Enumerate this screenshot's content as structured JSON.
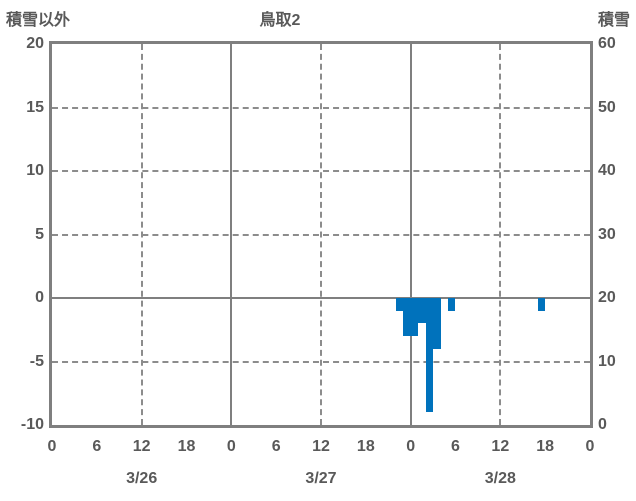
{
  "header": {
    "left_axis_title": "積雪以外",
    "chart_title": "鳥取2",
    "right_axis_title": "積雪"
  },
  "chart_data": {
    "type": "bar",
    "title": "鳥取2",
    "left_axis": {
      "title": "積雪以外",
      "min": -10,
      "max": 20,
      "ticks": [
        20,
        15,
        10,
        5,
        0,
        -5,
        -10
      ]
    },
    "right_axis": {
      "title": "積雪",
      "min": 0,
      "max": 60,
      "ticks": [
        60,
        50,
        40,
        30,
        20,
        10,
        0
      ]
    },
    "x_axis": {
      "total_hours": 72,
      "tick_step_hours": 6,
      "hour_tick_labels": [
        "0",
        "6",
        "12",
        "18",
        "0",
        "6",
        "12",
        "18",
        "0",
        "6",
        "12",
        "18",
        "0"
      ],
      "day_labels": [
        "3/26",
        "3/27",
        "3/28"
      ],
      "solid_gridlines_hours": [
        24,
        48
      ],
      "dashed_gridlines_hours": [
        12,
        36,
        60
      ]
    },
    "dashed_gridlines_left_values": [
      15,
      10,
      5,
      -5
    ],
    "zero_line_left_value": 0,
    "series": [
      {
        "name": "積雪以外",
        "type": "bar",
        "axis": "left",
        "color": "#0072BC",
        "points": [
          {
            "day": "3/27",
            "hour": 22,
            "x_hour": 46,
            "value": -1
          },
          {
            "day": "3/27",
            "hour": 23,
            "x_hour": 47,
            "value": -3
          },
          {
            "day": "3/28",
            "hour": 0,
            "x_hour": 48,
            "value": -3
          },
          {
            "day": "3/28",
            "hour": 1,
            "x_hour": 49,
            "value": -2
          },
          {
            "day": "3/28",
            "hour": 2,
            "x_hour": 50,
            "value": -9
          },
          {
            "day": "3/28",
            "hour": 3,
            "x_hour": 51,
            "value": -4
          },
          {
            "day": "3/28",
            "hour": 5,
            "x_hour": 53,
            "value": -1
          },
          {
            "day": "3/28",
            "hour": 17,
            "x_hour": 65,
            "value": -1
          }
        ]
      },
      {
        "name": "積雪",
        "type": "none-visible",
        "axis": "right",
        "points": []
      }
    ],
    "colors": {
      "bar": "#0072BC",
      "grid_solid": "#7f7f7f",
      "grid_dashed": "#8c8c8c",
      "text": "#595959",
      "background": "#ffffff"
    },
    "legend": false,
    "grid": true
  }
}
